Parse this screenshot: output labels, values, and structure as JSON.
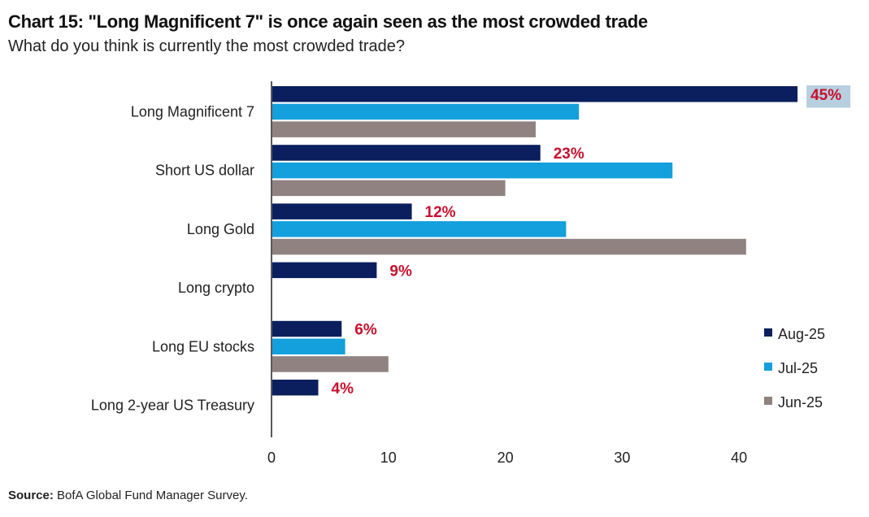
{
  "header": {
    "title": "Chart 15: \"Long Magnificent 7\" is once again seen as the most crowded trade",
    "subtitle": "What do you think is currently the most crowded trade?"
  },
  "footer": {
    "source_label": "Source:",
    "source_text": " BofA Global Fund Manager Survey."
  },
  "colors": {
    "aug": "#0b1f5e",
    "jul": "#14a0dc",
    "jun": "#918282",
    "label_red": "#c8102e",
    "highlight": "#b8cfe0"
  },
  "chart_data": {
    "type": "bar",
    "orientation": "horizontal",
    "categories": [
      "Long Magnificent 7",
      "Short US dollar",
      "Long Gold",
      "Long crypto",
      "Long EU stocks",
      "Long 2-year US Treasury"
    ],
    "series": [
      {
        "name": "Aug-25",
        "values": [
          45,
          23,
          12,
          9,
          6,
          4
        ],
        "data_labels": [
          "45%",
          "23%",
          "12%",
          "9%",
          "6%",
          "4%"
        ]
      },
      {
        "name": "Jul-25",
        "values": [
          26.3,
          34.3,
          25.2,
          null,
          6.3,
          null
        ]
      },
      {
        "name": "Jun-25",
        "values": [
          22.6,
          20.0,
          40.6,
          null,
          10.0,
          null
        ]
      }
    ],
    "xlim": [
      0,
      45
    ],
    "xticks": [
      "0",
      "10",
      "20",
      "30",
      "40"
    ],
    "grid": false,
    "legend_position": "bottom-right",
    "highlighted_label_index": 0
  }
}
